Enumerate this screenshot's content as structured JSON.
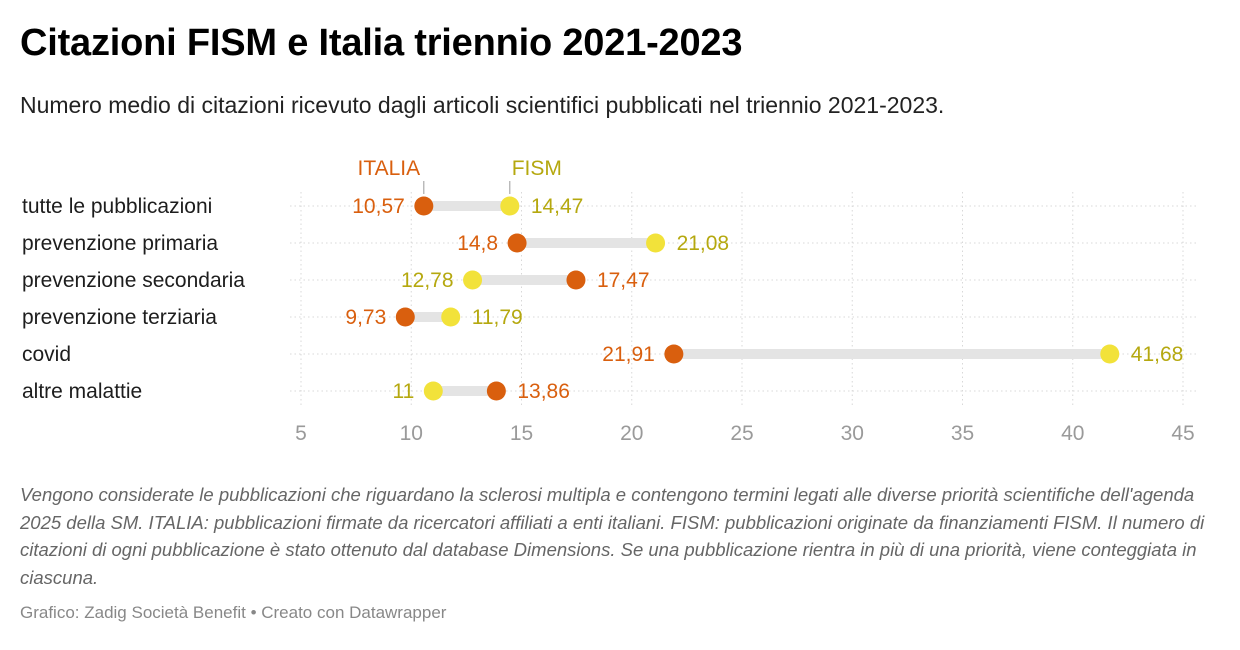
{
  "header": {
    "title": "Citazioni FISM e Italia triennio 2021-2023",
    "subtitle": "Numero medio di citazioni ricevuto dagli articoli scientifici pubblicati nel triennio 2021-2023."
  },
  "footer": {
    "notes": "Vengono considerate le pubblicazioni che riguardano la sclerosi multipla e contengono termini legati alle diverse priorità scientifiche dell'agenda 2025 della SM. ITALIA: pubblicazioni firmate da ricercatori affiliati a enti italiani. FISM: pubblicazioni originate da finanziamenti FISM. Il numero di citazioni di ogni pubblicazione è stato ottenuto dal database Dimensions. Se una pubblicazione rientra in più di una priorità, viene conteggiata in ciascuna.",
    "credit": "Grafico: Zadig Società Benefit • Creato con Datawrapper"
  },
  "chart_data": {
    "type": "dot-range",
    "categories": [
      "tutte le pubblicazioni",
      "prevenzione primaria",
      "prevenzione secondaria",
      "prevenzione terziaria",
      "covid",
      "altre malattie"
    ],
    "series": [
      {
        "name": "ITALIA",
        "color": "#d95f0e",
        "label_color": "#d95f0e",
        "values": [
          10.57,
          14.8,
          17.47,
          9.73,
          21.91,
          13.86
        ],
        "labels": [
          "10,57",
          "14,8",
          "17,47",
          "9,73",
          "21,91",
          "13,86"
        ]
      },
      {
        "name": "FISM",
        "color": "#f2e23a",
        "label_color": "#b5a80f",
        "values": [
          14.47,
          21.08,
          12.78,
          11.79,
          41.68,
          11
        ],
        "labels": [
          "14,47",
          "21,08",
          "12,78",
          "11,79",
          "41,68",
          "11"
        ]
      }
    ],
    "xlim": [
      5,
      45
    ],
    "xticks": [
      5,
      10,
      15,
      20,
      25,
      30,
      35,
      40,
      45
    ],
    "xtick_labels": [
      "5",
      "10",
      "15",
      "20",
      "25",
      "30",
      "35",
      "40",
      "45"
    ],
    "grid": true,
    "legend": "direct labels above first row"
  }
}
